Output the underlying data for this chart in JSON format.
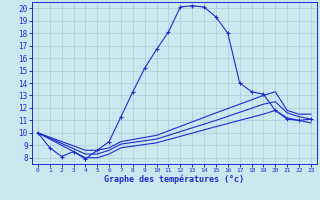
{
  "xlabel": "Graphe des températures (°c)",
  "xlim": [
    -0.5,
    23.5
  ],
  "ylim": [
    7.5,
    20.5
  ],
  "xticks": [
    0,
    1,
    2,
    3,
    4,
    5,
    6,
    7,
    8,
    9,
    10,
    11,
    12,
    13,
    14,
    15,
    16,
    17,
    18,
    19,
    20,
    21,
    22,
    23
  ],
  "yticks": [
    8,
    9,
    10,
    11,
    12,
    13,
    14,
    15,
    16,
    17,
    18,
    19,
    20
  ],
  "background_color": "#cce8ee",
  "line_color": "#1a2ecc",
  "grid_color": "#aaccdd",
  "curve1_x": [
    0,
    1,
    2,
    3,
    4,
    5,
    6,
    7,
    8,
    9,
    10,
    11,
    12,
    13,
    14,
    15,
    16,
    17,
    18,
    19,
    20,
    21,
    22,
    23
  ],
  "curve1_y": [
    10.0,
    8.8,
    8.1,
    8.5,
    7.9,
    8.6,
    9.3,
    11.3,
    13.3,
    15.2,
    16.7,
    18.1,
    20.1,
    20.2,
    20.1,
    19.3,
    18.0,
    14.0,
    13.3,
    13.1,
    11.8,
    11.1,
    11.0,
    11.1
  ],
  "curve2_x": [
    0,
    4,
    5,
    6,
    7,
    10,
    15,
    19,
    20,
    21,
    22,
    23
  ],
  "curve2_y": [
    10.0,
    8.6,
    8.6,
    8.8,
    9.3,
    9.8,
    11.6,
    13.0,
    13.3,
    11.8,
    11.5,
    11.5
  ],
  "curve3_x": [
    0,
    4,
    5,
    6,
    7,
    10,
    15,
    19,
    20,
    21,
    22,
    23
  ],
  "curve3_y": [
    10.0,
    8.3,
    8.3,
    8.6,
    9.1,
    9.5,
    11.0,
    12.3,
    12.5,
    11.6,
    11.3,
    11.1
  ],
  "curve4_x": [
    0,
    4,
    5,
    6,
    7,
    10,
    15,
    19,
    20,
    21,
    22,
    23
  ],
  "curve4_y": [
    10.0,
    8.0,
    8.0,
    8.3,
    8.8,
    9.2,
    10.5,
    11.5,
    11.8,
    11.2,
    11.0,
    10.8
  ]
}
